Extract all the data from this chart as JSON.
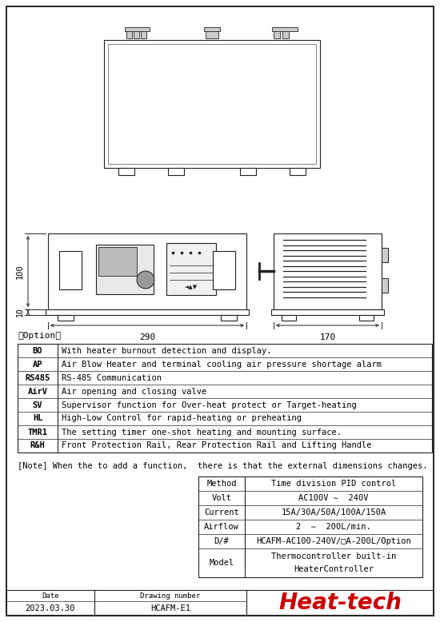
{
  "bg_color": "#ffffff",
  "line_color": "#222222",
  "option_rows": [
    [
      "BO",
      "With heater burnout detection and display."
    ],
    [
      "AP",
      "Air Blow Heater and terminal cooling air pressure shortage alarm"
    ],
    [
      "RS485",
      "RS-485 Communication"
    ],
    [
      "AirV",
      "Air opening and closing valve"
    ],
    [
      "SV",
      "Supervisor function for Over-heat protect or Target-heating"
    ],
    [
      "HL",
      "High-Low Control for rapid-heating or preheating"
    ],
    [
      "TMR1",
      "The setting timer one-shot heating and mounting surface."
    ],
    [
      "R&H",
      "Front Protection Rail, Rear Protection Rail and Lifting Handle"
    ]
  ],
  "spec_rows": [
    [
      "Method",
      "Time division PID control"
    ],
    [
      "Volt",
      "AC100V ∼  240V"
    ],
    [
      "Current",
      "15A/30A/50A/100A/150A"
    ],
    [
      "Airflow",
      "2  ∼  200L/min."
    ],
    [
      "D/#",
      "HCAFM-AC100-240V/□A-200L/Option"
    ],
    [
      "Model",
      "Thermocontroller built-in\nHeaterController"
    ]
  ],
  "note_text": "[Note] When the to add a function,  there is that the external dimensions changes.",
  "date_label": "Date",
  "drawing_number_label": "Drawing number",
  "date_value": "2023.03.30",
  "drawing_number_value": "HCAFM-E1",
  "heattech_text": "Heat-tech",
  "dim_290": "290",
  "dim_170": "170",
  "dim_100": "100",
  "dim_10": "10"
}
